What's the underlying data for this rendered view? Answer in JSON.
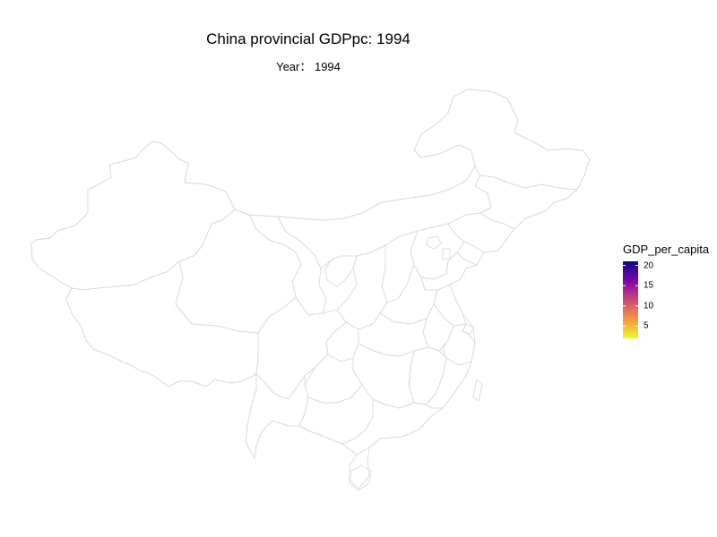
{
  "title": "China provincial GDPpc: 1994",
  "subtitle": "Year： 1994",
  "legend": {
    "title": "GDP_per_capita",
    "ticks": [
      {
        "value": 20,
        "label": "20"
      },
      {
        "value": 15,
        "label": "15"
      },
      {
        "value": 10,
        "label": "10"
      },
      {
        "value": 5,
        "label": "5"
      }
    ],
    "range": [
      2,
      21
    ],
    "colors": [
      "#0d0887",
      "#7e03a8",
      "#cc4778",
      "#f89540",
      "#f0f921"
    ]
  },
  "map": {
    "border_color": "#dddddd",
    "fill_color": "#ffffff"
  }
}
